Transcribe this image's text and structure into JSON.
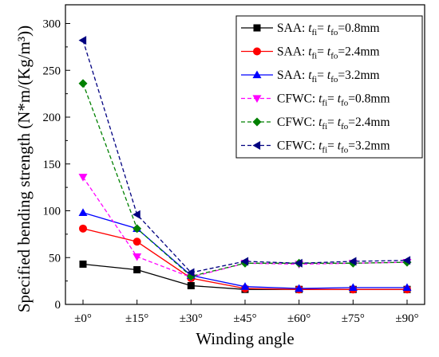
{
  "chart_data": {
    "type": "line",
    "title": "",
    "xlabel": "Winding angle",
    "ylabel": "Specified bending strength (N*m/(Kg/m³))",
    "categories": [
      "±0°",
      "±15°",
      "±30°",
      "±45°",
      "±60°",
      "±75°",
      "±90°"
    ],
    "ylim": [
      0,
      320
    ],
    "yticks": [
      0,
      50,
      100,
      150,
      200,
      250,
      300
    ],
    "grid": false,
    "legend_position": "top-right",
    "series": [
      {
        "name": "SAA: tfi= tfo=0.8mm",
        "legend_prefix": "SAA: ",
        "legend_param": "=0.8mm",
        "color": "#000000",
        "marker": "square",
        "dash": "solid",
        "values": [
          43,
          37,
          20,
          16,
          16,
          16,
          16
        ]
      },
      {
        "name": "SAA: tfi= tfo=2.4mm",
        "legend_prefix": "SAA: ",
        "legend_param": "=2.4mm",
        "color": "#ff0000",
        "marker": "circle",
        "dash": "solid",
        "values": [
          81,
          67,
          28,
          17,
          16,
          16,
          16
        ]
      },
      {
        "name": "SAA: tfi= tfo=3.2mm",
        "legend_prefix": "SAA: ",
        "legend_param": "=3.2mm",
        "color": "#0000ff",
        "marker": "triangle-up",
        "dash": "solid",
        "values": [
          98,
          81,
          31,
          19,
          17,
          18,
          18
        ]
      },
      {
        "name": "CFWC: tfi= tfo=0.8mm",
        "legend_prefix": "CFWC: ",
        "legend_param": "=0.8mm",
        "color": "#ff00ff",
        "marker": "triangle-down",
        "dash": "dashed",
        "values": [
          136,
          51,
          29,
          44,
          43,
          44,
          45
        ]
      },
      {
        "name": "CFWC: tfi= tfo=2.4mm",
        "legend_prefix": "CFWC: ",
        "legend_param": "=2.4mm",
        "color": "#008000",
        "marker": "diamond",
        "dash": "dashed",
        "values": [
          236,
          81,
          30,
          44,
          44,
          44,
          45
        ]
      },
      {
        "name": "CFWC: tfi= tfo=3.2mm",
        "legend_prefix": "CFWC: ",
        "legend_param": "=3.2mm",
        "color": "#000080",
        "marker": "triangle-left",
        "dash": "dashed",
        "values": [
          282,
          96,
          34,
          46,
          44,
          46,
          47
        ]
      }
    ]
  }
}
